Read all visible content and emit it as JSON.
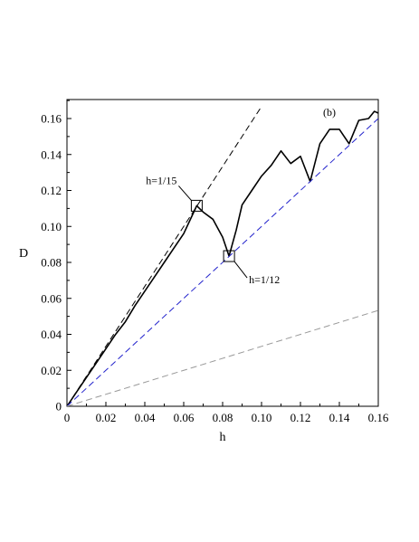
{
  "chart_data": {
    "type": "line",
    "panel_label": "(b)",
    "xlabel": "h",
    "ylabel": "D",
    "xlim": [
      0,
      0.16
    ],
    "ylim": [
      0,
      0.17
    ],
    "x_ticks": [
      "0",
      "0.02",
      "0.04",
      "0.06",
      "0.08",
      "0.10",
      "0.12",
      "0.14",
      "0.16"
    ],
    "y_ticks": [
      "0",
      "0.02",
      "0.04",
      "0.06",
      "0.08",
      "0.10",
      "0.12",
      "0.14",
      "0.16"
    ],
    "grid": false,
    "legend": "none",
    "annotations": [
      {
        "text": "h=1/15",
        "x": 0.0667,
        "y": 0.1115
      },
      {
        "text": "h=1/12",
        "x": 0.0833,
        "y": 0.0835
      }
    ],
    "series": [
      {
        "style": "solid",
        "color": "#000000",
        "x": [
          0,
          0.005,
          0.01,
          0.015,
          0.02,
          0.025,
          0.03,
          0.035,
          0.04,
          0.045,
          0.05,
          0.055,
          0.06,
          0.0667,
          0.07,
          0.075,
          0.08,
          0.0833,
          0.087,
          0.09,
          0.095,
          0.1,
          0.105,
          0.11,
          0.115,
          0.12,
          0.125,
          0.13,
          0.135,
          0.14,
          0.145,
          0.15,
          0.155,
          0.158,
          0.16
        ],
        "y": [
          0,
          0.008,
          0.016,
          0.024,
          0.032,
          0.04,
          0.047,
          0.056,
          0.064,
          0.072,
          0.08,
          0.088,
          0.096,
          0.1115,
          0.108,
          0.104,
          0.094,
          0.0835,
          0.098,
          0.112,
          0.12,
          0.128,
          0.134,
          0.142,
          0.135,
          0.139,
          0.125,
          0.146,
          0.154,
          0.154,
          0.146,
          0.159,
          0.16,
          0.164,
          0.163
        ]
      },
      {
        "style": "dashed",
        "color": "#000000",
        "x": [
          0,
          0.1
        ],
        "y": [
          0,
          0.1667
        ]
      },
      {
        "style": "dashed",
        "color": "#2222cc",
        "x": [
          0,
          0.16
        ],
        "y": [
          0,
          0.16
        ]
      },
      {
        "style": "dashed",
        "color": "#999999",
        "x": [
          0,
          0.16
        ],
        "y": [
          0,
          0.0533
        ]
      }
    ]
  }
}
